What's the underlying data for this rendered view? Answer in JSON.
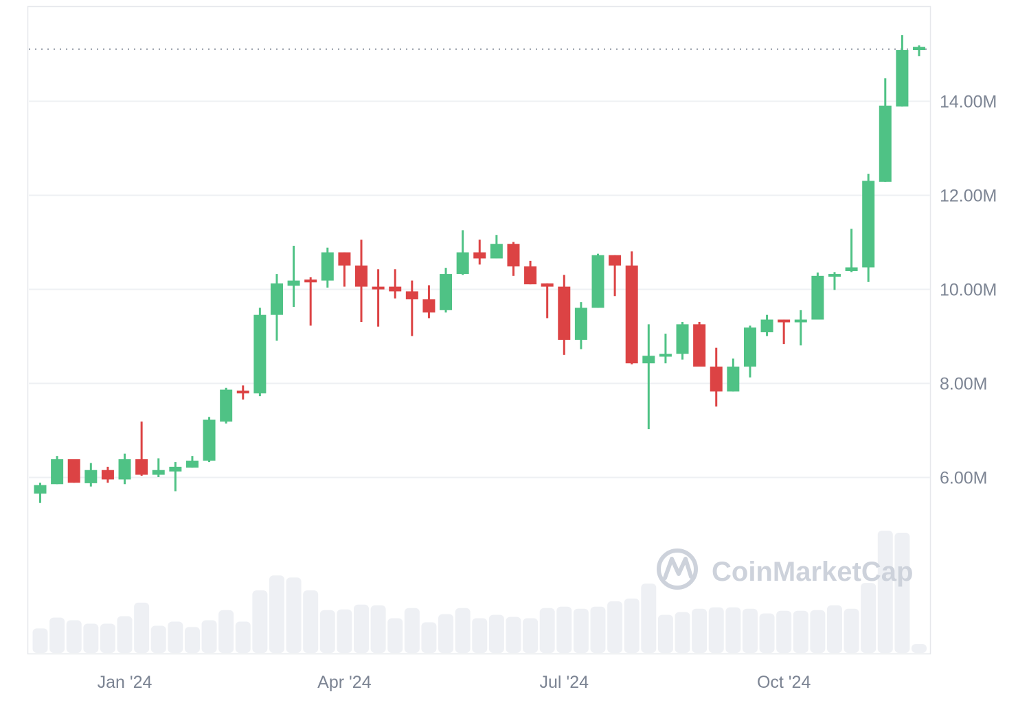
{
  "colors": {
    "up": "#4fc285",
    "down": "#dc4344",
    "grid": "#eef0f3",
    "frame": "#e6e8ec",
    "volume": "#eef0f4",
    "axis_text": "#7c8493",
    "last_price_line": "#8a919e",
    "watermark": "#cdd2db"
  },
  "watermark": {
    "text": "CoinMarketCap",
    "icon": "coinmarketcap-logo-icon"
  },
  "chart_data": {
    "type": "candlestick",
    "title": "",
    "xlabel": "",
    "ylabel": "",
    "interval": "weekly",
    "ylim": [
      4.0,
      15.9
    ],
    "y_unit": "M",
    "grid": true,
    "legend": null,
    "y_ticks": [
      {
        "value": 14,
        "label": "14.00M"
      },
      {
        "value": 12,
        "label": "12.00M"
      },
      {
        "value": 10,
        "label": "10.00M"
      },
      {
        "value": 8,
        "label": "8.00M"
      },
      {
        "value": 6,
        "label": "6.00M"
      }
    ],
    "x_ticks": [
      {
        "index": 5,
        "label": "Jan '24"
      },
      {
        "index": 18,
        "label": "Apr '24"
      },
      {
        "index": 31,
        "label": "Jul '24"
      },
      {
        "index": 44,
        "label": "Oct '24"
      }
    ],
    "last_price": 15.1,
    "candles": [
      {
        "o": 5.65,
        "h": 5.88,
        "l": 5.45,
        "c": 5.83
      },
      {
        "o": 5.85,
        "h": 6.45,
        "l": 5.85,
        "c": 6.38
      },
      {
        "o": 6.38,
        "h": 6.38,
        "l": 5.88,
        "c": 5.88
      },
      {
        "o": 5.87,
        "h": 6.3,
        "l": 5.8,
        "c": 6.15
      },
      {
        "o": 6.15,
        "h": 6.22,
        "l": 5.88,
        "c": 5.95
      },
      {
        "o": 5.95,
        "h": 6.5,
        "l": 5.85,
        "c": 6.38
      },
      {
        "o": 6.38,
        "h": 7.18,
        "l": 6.03,
        "c": 6.05
      },
      {
        "o": 6.05,
        "h": 6.4,
        "l": 6.0,
        "c": 6.15
      },
      {
        "o": 6.12,
        "h": 6.32,
        "l": 5.7,
        "c": 6.22
      },
      {
        "o": 6.2,
        "h": 6.45,
        "l": 6.2,
        "c": 6.35
      },
      {
        "o": 6.35,
        "h": 7.28,
        "l": 6.32,
        "c": 7.22
      },
      {
        "o": 7.18,
        "h": 7.9,
        "l": 7.14,
        "c": 7.86
      },
      {
        "o": 7.84,
        "h": 7.95,
        "l": 7.65,
        "c": 7.78
      },
      {
        "o": 7.78,
        "h": 9.6,
        "l": 7.72,
        "c": 9.45
      },
      {
        "o": 9.45,
        "h": 10.32,
        "l": 8.9,
        "c": 10.12
      },
      {
        "o": 10.07,
        "h": 10.92,
        "l": 9.62,
        "c": 10.18
      },
      {
        "o": 10.2,
        "h": 10.25,
        "l": 9.22,
        "c": 10.18
      },
      {
        "o": 10.18,
        "h": 10.88,
        "l": 10.03,
        "c": 10.78
      },
      {
        "o": 10.78,
        "h": 10.78,
        "l": 10.05,
        "c": 10.5
      },
      {
        "o": 10.5,
        "h": 11.05,
        "l": 9.3,
        "c": 10.05
      },
      {
        "o": 10.05,
        "h": 10.42,
        "l": 9.2,
        "c": 10.0
      },
      {
        "o": 10.05,
        "h": 10.42,
        "l": 9.8,
        "c": 9.95
      },
      {
        "o": 9.95,
        "h": 10.18,
        "l": 9.0,
        "c": 9.78
      },
      {
        "o": 9.78,
        "h": 10.08,
        "l": 9.38,
        "c": 9.5
      },
      {
        "o": 9.55,
        "h": 10.45,
        "l": 9.5,
        "c": 10.32
      },
      {
        "o": 10.32,
        "h": 11.25,
        "l": 10.3,
        "c": 10.78
      },
      {
        "o": 10.78,
        "h": 11.05,
        "l": 10.52,
        "c": 10.65
      },
      {
        "o": 10.65,
        "h": 11.15,
        "l": 10.65,
        "c": 10.96
      },
      {
        "o": 10.96,
        "h": 11.0,
        "l": 10.28,
        "c": 10.48
      },
      {
        "o": 10.48,
        "h": 10.6,
        "l": 10.1,
        "c": 10.1
      },
      {
        "o": 10.12,
        "h": 10.12,
        "l": 9.38,
        "c": 10.05
      },
      {
        "o": 10.05,
        "h": 10.3,
        "l": 8.6,
        "c": 8.92
      },
      {
        "o": 8.92,
        "h": 9.72,
        "l": 8.72,
        "c": 9.6
      },
      {
        "o": 9.6,
        "h": 10.75,
        "l": 9.6,
        "c": 10.72
      },
      {
        "o": 10.72,
        "h": 10.72,
        "l": 9.85,
        "c": 10.5
      },
      {
        "o": 10.5,
        "h": 10.8,
        "l": 8.4,
        "c": 8.42
      },
      {
        "o": 8.42,
        "h": 9.25,
        "l": 7.02,
        "c": 8.58
      },
      {
        "o": 8.58,
        "h": 9.05,
        "l": 8.42,
        "c": 8.62
      },
      {
        "o": 8.62,
        "h": 9.3,
        "l": 8.5,
        "c": 9.25
      },
      {
        "o": 9.25,
        "h": 9.3,
        "l": 8.35,
        "c": 8.35
      },
      {
        "o": 8.35,
        "h": 8.75,
        "l": 7.5,
        "c": 7.82
      },
      {
        "o": 7.82,
        "h": 8.52,
        "l": 7.82,
        "c": 8.35
      },
      {
        "o": 8.35,
        "h": 9.22,
        "l": 8.12,
        "c": 9.18
      },
      {
        "o": 9.08,
        "h": 9.45,
        "l": 9.0,
        "c": 9.35
      },
      {
        "o": 9.35,
        "h": 9.35,
        "l": 8.83,
        "c": 9.3
      },
      {
        "o": 9.32,
        "h": 9.55,
        "l": 8.8,
        "c": 9.35
      },
      {
        "o": 9.35,
        "h": 10.35,
        "l": 9.35,
        "c": 10.28
      },
      {
        "o": 10.3,
        "h": 10.36,
        "l": 9.98,
        "c": 10.32
      },
      {
        "o": 10.38,
        "h": 11.28,
        "l": 10.36,
        "c": 10.46
      },
      {
        "o": 10.46,
        "h": 12.45,
        "l": 10.15,
        "c": 12.3
      },
      {
        "o": 12.28,
        "h": 14.48,
        "l": 12.28,
        "c": 13.9
      },
      {
        "o": 13.88,
        "h": 15.4,
        "l": 13.88,
        "c": 15.08
      },
      {
        "o": 15.08,
        "h": 15.18,
        "l": 14.95,
        "c": 15.15
      }
    ],
    "volume": [
      36,
      52,
      48,
      43,
      43,
      54,
      74,
      40,
      46,
      38,
      48,
      63,
      46,
      92,
      114,
      111,
      92,
      63,
      64,
      71,
      70,
      51,
      66,
      45,
      57,
      66,
      51,
      56,
      53,
      51,
      66,
      68,
      65,
      68,
      76,
      80,
      102,
      56,
      60,
      65,
      67,
      67,
      65,
      58,
      62,
      62,
      63,
      70,
      65,
      103,
      180,
      177,
      13
    ],
    "volume_max": 180
  }
}
